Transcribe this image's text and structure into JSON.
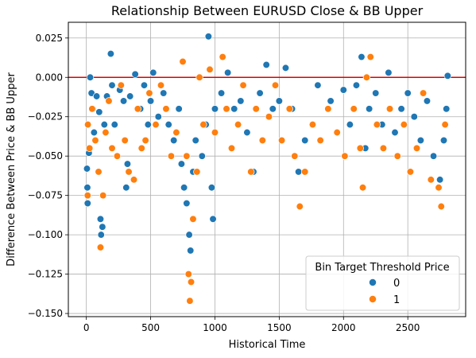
{
  "chart_data": {
    "type": "scatter",
    "title": "Relationship Between EURUSD Close & BB Upper",
    "xlabel": "Historical Time",
    "ylabel": "Difference Between Price & BB Upper",
    "xlim": [
      -140,
      2950
    ],
    "ylim": [
      -0.152,
      0.035
    ],
    "xticks": [
      "0",
      "500",
      "1000",
      "1500",
      "2000",
      "2500"
    ],
    "yticks": [
      "0.025",
      "0.000",
      "−0.025",
      "−0.050",
      "−0.075",
      "−0.100",
      "−0.125",
      "−0.150"
    ],
    "grid": true,
    "reference_line": {
      "y": 0.0,
      "color": "#e00000"
    },
    "legend": {
      "title": "Bin Target Threshold Price",
      "placement": "lower-right",
      "entries": [
        {
          "label": "0",
          "color": "#1f77b4"
        },
        {
          "label": "1",
          "color": "#ff7f0e"
        }
      ]
    },
    "series": [
      {
        "name": "0",
        "color": "#1f77b4",
        "points": [
          [
            5,
            -0.058
          ],
          [
            8,
            -0.07
          ],
          [
            10,
            -0.08
          ],
          [
            20,
            -0.048
          ],
          [
            30,
            0.0
          ],
          [
            40,
            -0.01
          ],
          [
            50,
            -0.02
          ],
          [
            60,
            -0.035
          ],
          [
            80,
            -0.012
          ],
          [
            100,
            -0.022
          ],
          [
            110,
            -0.09
          ],
          [
            115,
            -0.1
          ],
          [
            125,
            -0.095
          ],
          [
            140,
            -0.03
          ],
          [
            160,
            -0.012
          ],
          [
            190,
            0.015
          ],
          [
            200,
            -0.005
          ],
          [
            220,
            -0.03
          ],
          [
            260,
            -0.008
          ],
          [
            290,
            -0.015
          ],
          [
            310,
            -0.07
          ],
          [
            320,
            -0.055
          ],
          [
            340,
            -0.012
          ],
          [
            380,
            0.002
          ],
          [
            420,
            -0.02
          ],
          [
            450,
            -0.005
          ],
          [
            480,
            -0.03
          ],
          [
            500,
            -0.015
          ],
          [
            520,
            0.003
          ],
          [
            560,
            -0.025
          ],
          [
            600,
            -0.01
          ],
          [
            640,
            -0.03
          ],
          [
            680,
            -0.04
          ],
          [
            720,
            -0.02
          ],
          [
            740,
            -0.055
          ],
          [
            760,
            -0.07
          ],
          [
            780,
            -0.08
          ],
          [
            800,
            -0.1
          ],
          [
            810,
            -0.11
          ],
          [
            830,
            -0.06
          ],
          [
            850,
            -0.04
          ],
          [
            900,
            -0.05
          ],
          [
            930,
            -0.03
          ],
          [
            950,
            0.026
          ],
          [
            975,
            -0.07
          ],
          [
            985,
            -0.09
          ],
          [
            1000,
            -0.02
          ],
          [
            1050,
            -0.01
          ],
          [
            1100,
            0.003
          ],
          [
            1150,
            -0.02
          ],
          [
            1200,
            -0.015
          ],
          [
            1250,
            -0.035
          ],
          [
            1300,
            -0.06
          ],
          [
            1350,
            -0.01
          ],
          [
            1400,
            0.008
          ],
          [
            1450,
            -0.02
          ],
          [
            1500,
            -0.015
          ],
          [
            1550,
            0.006
          ],
          [
            1600,
            -0.02
          ],
          [
            1650,
            -0.06
          ],
          [
            1700,
            -0.04
          ],
          [
            1800,
            -0.005
          ],
          [
            1900,
            -0.015
          ],
          [
            2000,
            -0.008
          ],
          [
            2050,
            -0.03
          ],
          [
            2100,
            -0.005
          ],
          [
            2140,
            0.013
          ],
          [
            2170,
            -0.045
          ],
          [
            2200,
            -0.02
          ],
          [
            2250,
            -0.01
          ],
          [
            2300,
            -0.03
          ],
          [
            2350,
            0.003
          ],
          [
            2400,
            -0.035
          ],
          [
            2450,
            -0.02
          ],
          [
            2500,
            -0.01
          ],
          [
            2550,
            -0.025
          ],
          [
            2600,
            -0.04
          ],
          [
            2650,
            -0.015
          ],
          [
            2700,
            -0.05
          ],
          [
            2750,
            -0.065
          ],
          [
            2780,
            -0.04
          ],
          [
            2800,
            -0.02
          ],
          [
            2810,
            0.001
          ]
        ]
      },
      {
        "name": "1",
        "color": "#ff7f0e",
        "points": [
          [
            10,
            -0.075
          ],
          [
            12,
            -0.03
          ],
          [
            25,
            -0.045
          ],
          [
            45,
            -0.02
          ],
          [
            70,
            -0.04
          ],
          [
            95,
            -0.06
          ],
          [
            110,
            -0.108
          ],
          [
            130,
            -0.075
          ],
          [
            150,
            -0.035
          ],
          [
            175,
            -0.015
          ],
          [
            200,
            -0.045
          ],
          [
            240,
            -0.05
          ],
          [
            270,
            -0.005
          ],
          [
            300,
            -0.04
          ],
          [
            330,
            -0.06
          ],
          [
            370,
            -0.065
          ],
          [
            400,
            -0.02
          ],
          [
            430,
            -0.045
          ],
          [
            460,
            -0.04
          ],
          [
            490,
            -0.01
          ],
          [
            540,
            -0.03
          ],
          [
            580,
            -0.005
          ],
          [
            620,
            -0.02
          ],
          [
            660,
            -0.05
          ],
          [
            700,
            -0.035
          ],
          [
            750,
            0.01
          ],
          [
            780,
            -0.05
          ],
          [
            795,
            -0.125
          ],
          [
            805,
            -0.142
          ],
          [
            815,
            -0.13
          ],
          [
            830,
            -0.09
          ],
          [
            860,
            -0.06
          ],
          [
            880,
            0.0
          ],
          [
            910,
            -0.03
          ],
          [
            960,
            0.005
          ],
          [
            1000,
            -0.035
          ],
          [
            1060,
            0.013
          ],
          [
            1090,
            -0.02
          ],
          [
            1130,
            -0.045
          ],
          [
            1180,
            -0.03
          ],
          [
            1220,
            -0.005
          ],
          [
            1280,
            -0.06
          ],
          [
            1320,
            -0.02
          ],
          [
            1370,
            -0.04
          ],
          [
            1420,
            -0.025
          ],
          [
            1470,
            -0.005
          ],
          [
            1520,
            -0.04
          ],
          [
            1580,
            -0.02
          ],
          [
            1620,
            -0.05
          ],
          [
            1660,
            -0.082
          ],
          [
            1700,
            -0.06
          ],
          [
            1760,
            -0.03
          ],
          [
            1820,
            -0.04
          ],
          [
            1880,
            -0.02
          ],
          [
            1950,
            -0.035
          ],
          [
            2010,
            -0.05
          ],
          [
            2080,
            -0.02
          ],
          [
            2130,
            -0.045
          ],
          [
            2150,
            -0.07
          ],
          [
            2180,
            0.0
          ],
          [
            2210,
            0.013
          ],
          [
            2260,
            -0.03
          ],
          [
            2310,
            -0.045
          ],
          [
            2360,
            -0.02
          ],
          [
            2420,
            -0.05
          ],
          [
            2470,
            -0.03
          ],
          [
            2520,
            -0.06
          ],
          [
            2570,
            -0.045
          ],
          [
            2620,
            -0.01
          ],
          [
            2680,
            -0.065
          ],
          [
            2740,
            -0.07
          ],
          [
            2760,
            -0.082
          ],
          [
            2790,
            -0.03
          ]
        ]
      }
    ]
  }
}
